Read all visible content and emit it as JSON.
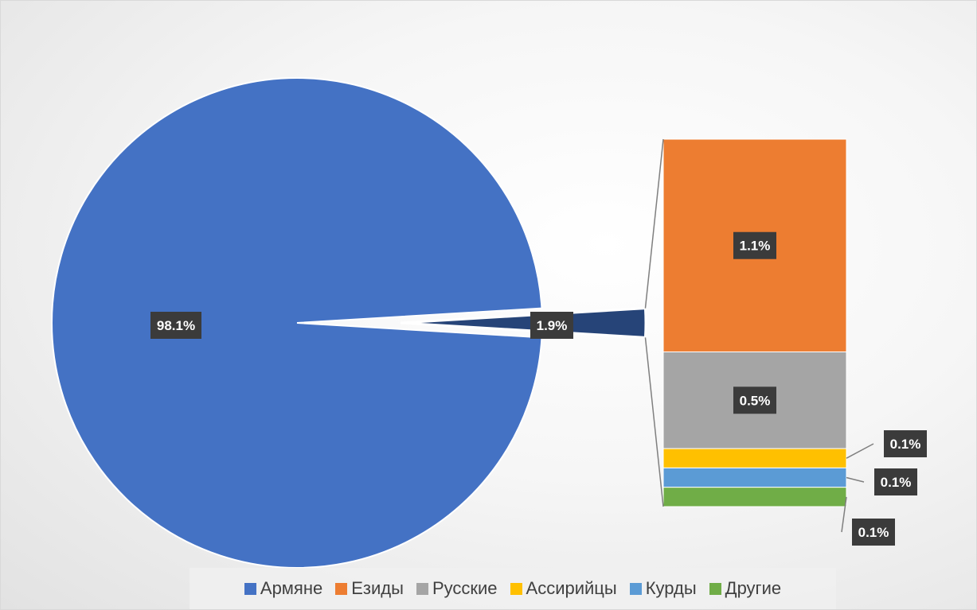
{
  "chart_data": {
    "type": "pie",
    "subtype": "bar-of-pie",
    "title": "",
    "legend_position": "bottom",
    "categories": [
      "Армяне",
      "Езиды",
      "Русские",
      "Ассирийцы",
      "Курды",
      "Другие"
    ],
    "values": [
      98.1,
      1.1,
      0.5,
      0.1,
      0.1,
      0.1
    ],
    "colors": [
      "#4472c4",
      "#ed7d31",
      "#a5a5a5",
      "#ffc000",
      "#5b9bd5",
      "#70ad47"
    ],
    "data_labels": [
      "98.1%",
      "1.1%",
      "0.5%",
      "0.1%",
      "0.1%",
      "0.1%"
    ],
    "other_slice": {
      "value": 1.9,
      "label": "1.9%",
      "color": "#264478"
    }
  }
}
